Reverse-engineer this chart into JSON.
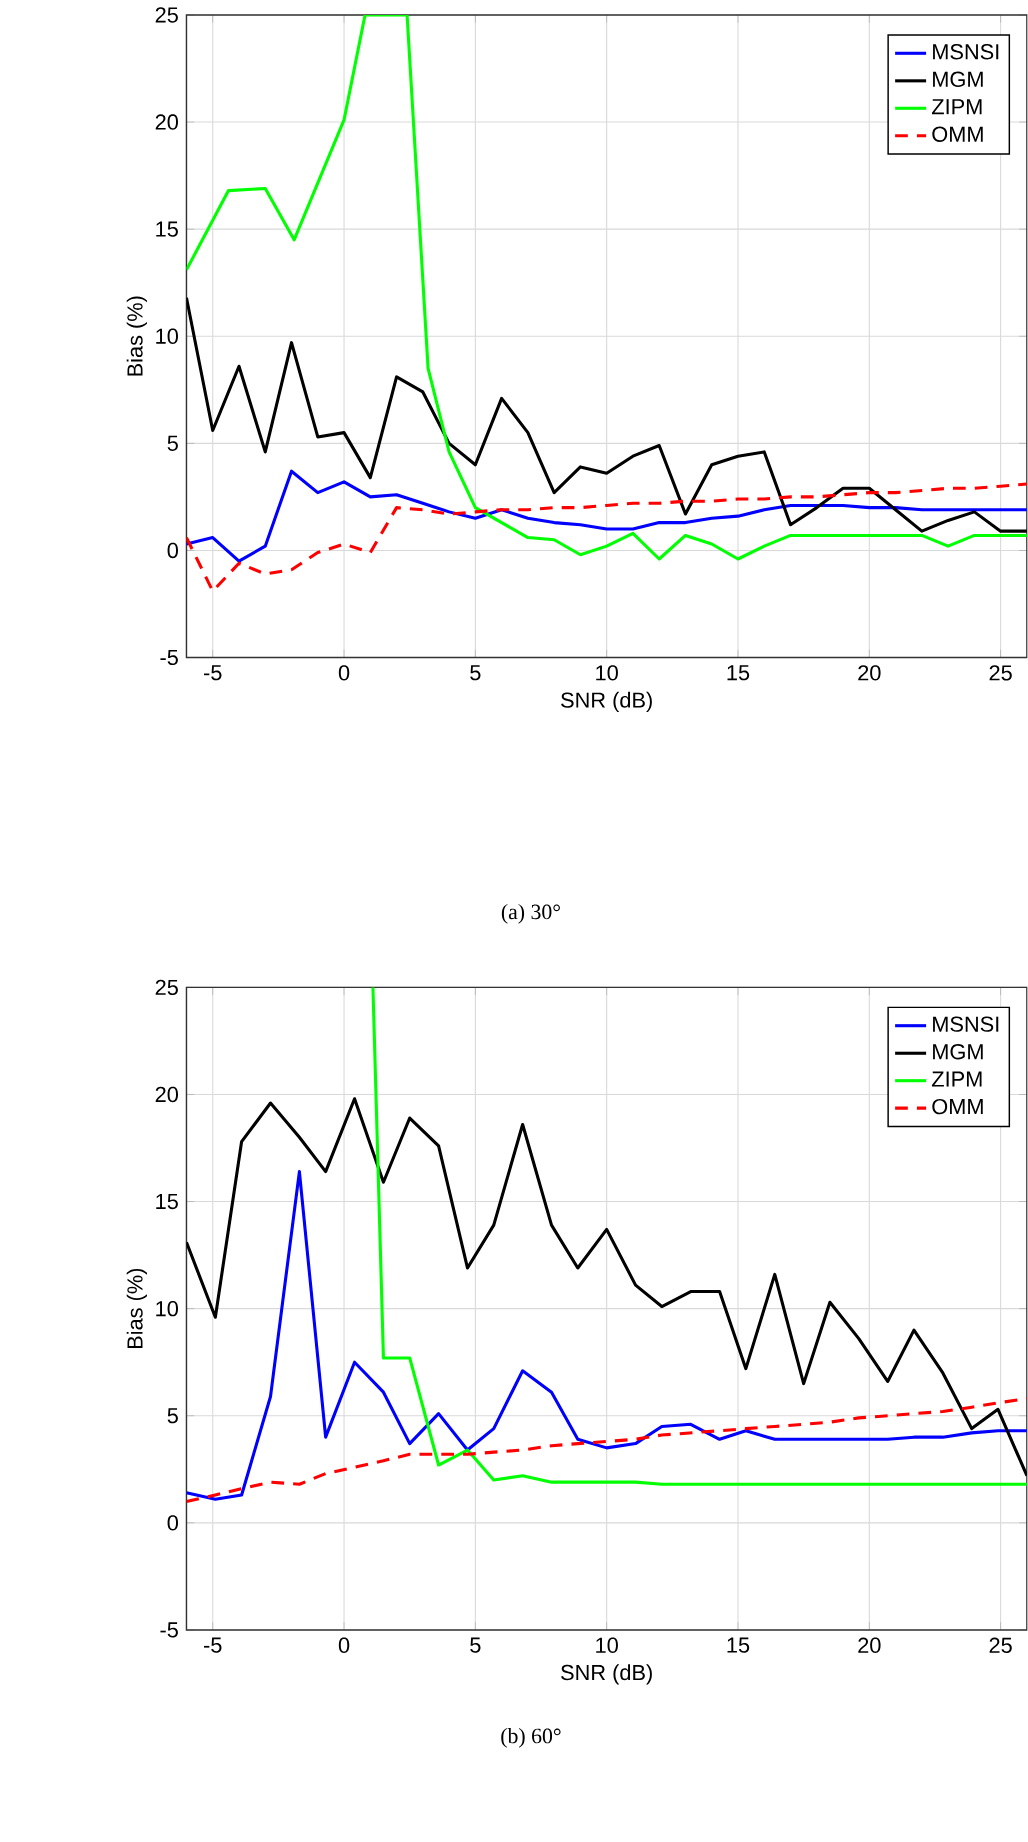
{
  "chart_data": [
    {
      "type": "line",
      "xlabel": "SNR (dB)",
      "ylabel": "Bias (%)",
      "annotations": [
        "(a) 30°"
      ],
      "x": [
        -6,
        -5,
        -4,
        -3,
        -2,
        -1,
        0,
        1,
        2,
        3,
        4,
        5,
        6,
        7,
        8,
        9,
        10,
        11,
        12,
        13,
        14,
        15,
        16,
        17,
        18,
        19,
        20,
        21,
        22,
        23,
        24,
        25,
        26
      ],
      "xlim": [
        -6,
        26
      ],
      "ylim": [
        -5,
        25
      ],
      "xticks": [
        -5,
        0,
        5,
        10,
        15,
        20,
        25
      ],
      "yticks": [
        -5,
        0,
        5,
        10,
        15,
        20,
        25
      ],
      "grid": true,
      "legend": "top right",
      "series": [
        {
          "name": "MSNSI",
          "color": "#0000ff",
          "line_style": "solid",
          "values": [
            0.3,
            0.6,
            -0.5,
            0.2,
            3.7,
            2.7,
            3.2,
            2.5,
            2.6,
            2.2,
            1.8,
            1.5,
            1.9,
            1.5,
            1.3,
            1.2,
            1.0,
            1.0,
            1.3,
            1.3,
            1.5,
            1.6,
            1.9,
            2.1,
            2.1,
            2.1,
            2.0,
            2.0,
            1.9,
            1.9,
            1.9,
            1.9,
            1.9
          ]
        },
        {
          "name": "MGM",
          "color": "#000000",
          "line_style": "solid",
          "values": [
            11.8,
            5.6,
            8.6,
            4.6,
            9.7,
            5.3,
            5.5,
            3.4,
            8.1,
            7.4,
            5.0,
            4.0,
            7.1,
            5.5,
            2.7,
            3.9,
            3.6,
            4.4,
            4.9,
            1.7,
            4.0,
            4.4,
            4.6,
            1.2,
            2.0,
            2.9,
            2.9,
            1.9,
            0.9,
            1.4,
            1.8,
            0.9,
            0.9
          ]
        },
        {
          "name": "ZIPM",
          "color": "#00ff00",
          "line_style": "solid",
          "x": [
            -6,
            -4.4,
            -3,
            -1.9,
            0,
            0.8,
            2.4,
            3.2,
            4,
            5,
            6,
            7,
            8,
            9,
            10,
            11,
            12,
            13,
            14,
            15,
            16,
            17,
            18,
            19,
            20,
            21,
            22,
            23,
            24,
            25,
            26
          ],
          "values": [
            13.1,
            16.8,
            16.9,
            14.5,
            20.1,
            25,
            25,
            8.5,
            4.6,
            2.0,
            1.3,
            0.6,
            0.5,
            -0.2,
            0.2,
            0.8,
            -0.4,
            0.7,
            0.3,
            -0.4,
            0.2,
            0.7,
            0.7,
            0.7,
            0.7,
            0.7,
            0.7,
            0.2,
            0.7,
            0.7,
            0.7
          ]
        },
        {
          "name": "OMM",
          "color": "#ff0000",
          "line_style": "dashed",
          "values": [
            0.6,
            -1.9,
            -0.6,
            -1.1,
            -0.9,
            -0.1,
            0.3,
            -0.1,
            2.0,
            1.9,
            1.7,
            1.8,
            1.9,
            1.9,
            2.0,
            2.0,
            2.1,
            2.2,
            2.2,
            2.3,
            2.3,
            2.4,
            2.4,
            2.5,
            2.5,
            2.6,
            2.7,
            2.7,
            2.8,
            2.9,
            2.9,
            3.0,
            3.1
          ]
        }
      ]
    },
    {
      "type": "line",
      "xlabel": "SNR (dB)",
      "ylabel": "Bias (%)",
      "annotations": [
        "(b) 60°"
      ],
      "x": [
        -6,
        -4.9,
        -3.9,
        -2.8,
        -1.7,
        -0.7,
        0.4,
        1.5,
        2.5,
        3.6,
        4.7,
        5.7,
        6.8,
        7.9,
        8.9,
        10,
        11.1,
        12.1,
        13.2,
        14.3,
        15.3,
        16.4,
        17.5,
        18.5,
        19.6,
        20.7,
        21.7,
        22.8,
        23.9,
        24.9,
        26
      ],
      "xlim": [
        -6,
        26
      ],
      "ylim": [
        -5,
        25
      ],
      "xticks": [
        -5,
        0,
        5,
        10,
        15,
        20,
        25
      ],
      "yticks": [
        -5,
        0,
        5,
        10,
        15,
        20,
        25
      ],
      "grid": true,
      "legend": "top right",
      "series": [
        {
          "name": "MSNSI",
          "color": "#0000ff",
          "line_style": "solid",
          "values": [
            1.4,
            1.1,
            1.3,
            5.9,
            16.4,
            4.0,
            7.5,
            6.1,
            3.7,
            5.1,
            3.4,
            4.4,
            7.1,
            6.1,
            3.9,
            3.5,
            3.7,
            4.5,
            4.6,
            3.9,
            4.3,
            3.9,
            3.9,
            3.9,
            3.9,
            3.9,
            4.0,
            4.0,
            4.2,
            4.3,
            4.3
          ]
        },
        {
          "name": "MGM",
          "color": "#000000",
          "line_style": "solid",
          "values": [
            13.1,
            9.6,
            17.8,
            19.6,
            18.0,
            16.4,
            19.8,
            15.9,
            18.9,
            17.6,
            11.9,
            13.9,
            18.6,
            13.9,
            11.9,
            13.7,
            11.1,
            10.1,
            10.8,
            10.8,
            7.2,
            11.6,
            6.5,
            10.3,
            8.6,
            6.6,
            9.0,
            7.0,
            4.4,
            5.3,
            2.2
          ]
        },
        {
          "name": "ZIPM",
          "color": "#00ff00",
          "line_style": "solid",
          "x": [
            1.1,
            1.5,
            2.5,
            3.6,
            4.7,
            5.7,
            6.8,
            7.9,
            8.9,
            10,
            11.1,
            12.1,
            13.2,
            14.3,
            15.3,
            16.4,
            17.5,
            18.5,
            19.6,
            20.7,
            21.7,
            22.8,
            23.9,
            24.9,
            26
          ],
          "values": [
            25,
            7.7,
            7.7,
            2.7,
            3.4,
            2.0,
            2.2,
            1.9,
            1.9,
            1.9,
            1.9,
            1.8,
            1.8,
            1.8,
            1.8,
            1.8,
            1.8,
            1.8,
            1.8,
            1.8,
            1.8,
            1.8,
            1.8,
            1.8,
            1.8
          ]
        },
        {
          "name": "OMM",
          "color": "#ff0000",
          "line_style": "dashed",
          "values": [
            1.0,
            1.3,
            1.6,
            1.9,
            1.8,
            2.3,
            2.6,
            2.9,
            3.2,
            3.2,
            3.2,
            3.3,
            3.4,
            3.6,
            3.7,
            3.8,
            3.9,
            4.1,
            4.2,
            4.3,
            4.4,
            4.5,
            4.6,
            4.7,
            4.9,
            5.0,
            5.1,
            5.2,
            5.4,
            5.6,
            5.8
          ]
        }
      ]
    }
  ]
}
